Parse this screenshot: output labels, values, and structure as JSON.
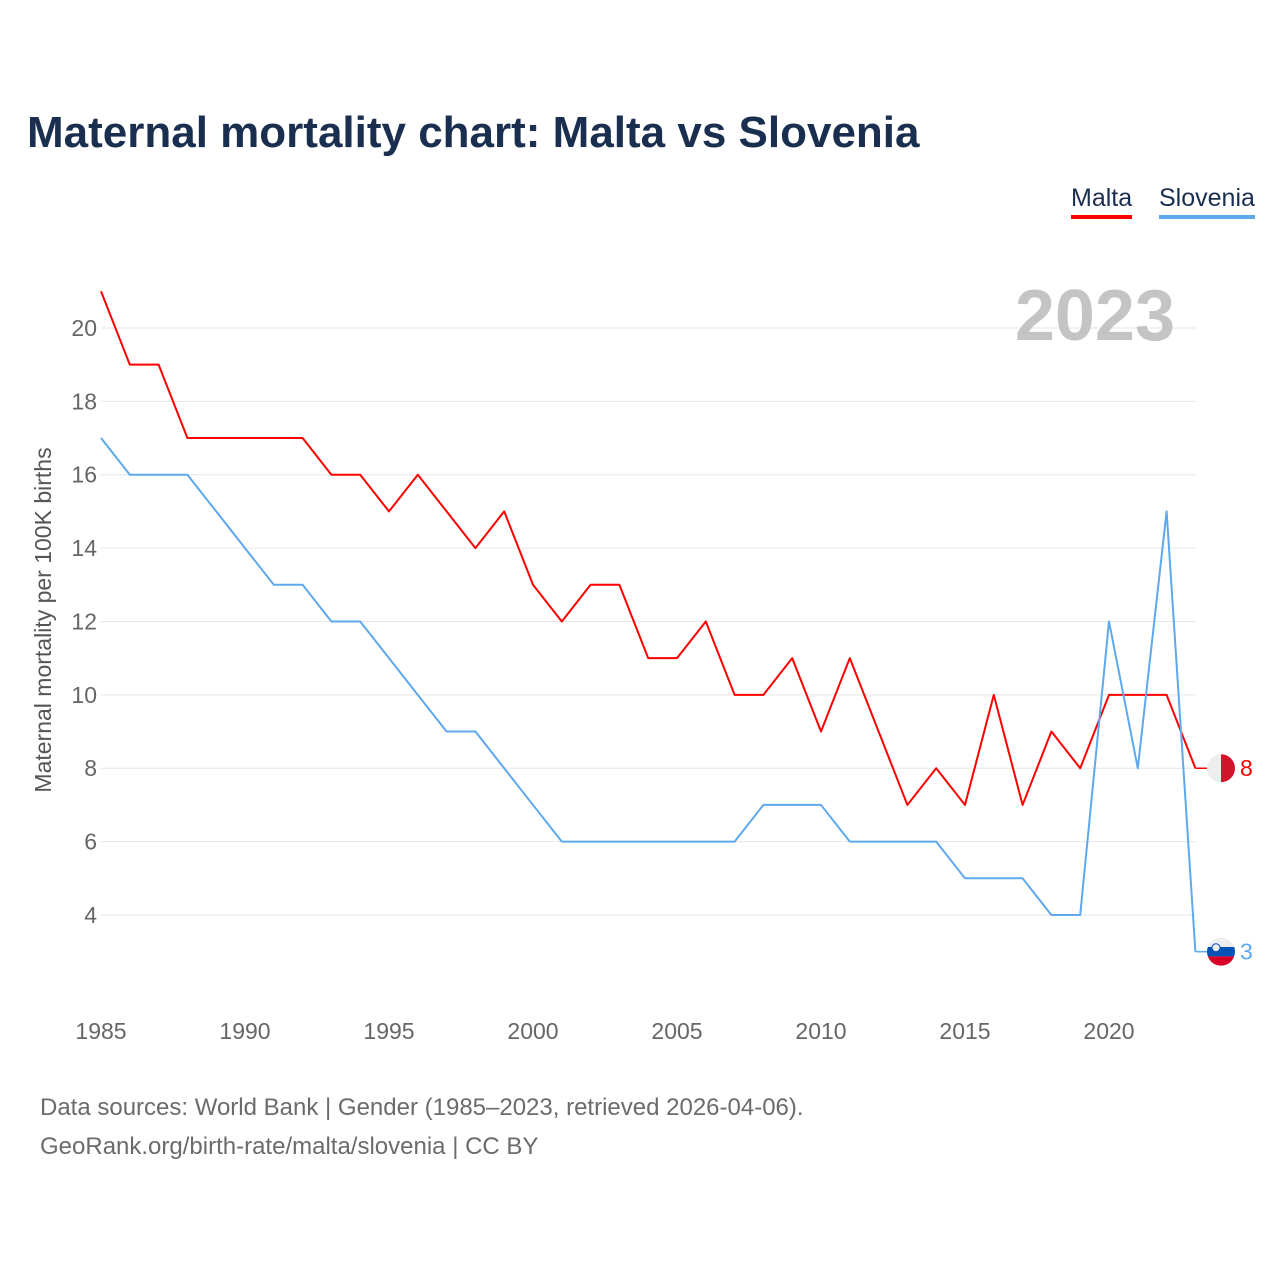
{
  "title": "Maternal mortality chart: Malta vs Slovenia",
  "legend": [
    "Malta",
    "Slovenia"
  ],
  "source_line1": "Data sources: World Bank | Gender (1985–2023, retrieved 2026-04-06).",
  "source_line2": "GeoRank.org/birth-rate/malta/slovenia | CC BY",
  "chart_data": {
    "type": "line",
    "title": "Maternal mortality chart: Malta vs Slovenia",
    "xlabel": "",
    "ylabel": "Maternal mortality per 100K births",
    "year_label": "2023",
    "x": [
      1985,
      1986,
      1987,
      1988,
      1989,
      1990,
      1991,
      1992,
      1993,
      1994,
      1995,
      1996,
      1997,
      1998,
      1999,
      2000,
      2001,
      2002,
      2003,
      2004,
      2005,
      2006,
      2007,
      2008,
      2009,
      2010,
      2011,
      2012,
      2013,
      2014,
      2015,
      2016,
      2017,
      2018,
      2019,
      2020,
      2021,
      2022,
      2023
    ],
    "xticks": [
      1985,
      1990,
      1995,
      2000,
      2005,
      2010,
      2015,
      2020
    ],
    "yticks": [
      4,
      6,
      8,
      10,
      12,
      14,
      16,
      18,
      20
    ],
    "xlim": [
      1985,
      2023
    ],
    "ylim": [
      2.7,
      21.2
    ],
    "grid": true,
    "legend_position": "top-right",
    "series": [
      {
        "name": "Malta",
        "color": "#ff0000",
        "end_label": "8",
        "values": [
          21,
          19,
          19,
          17,
          17,
          17,
          17,
          17,
          16,
          16,
          15,
          16,
          15,
          14,
          15,
          13,
          12,
          13,
          13,
          11,
          11,
          12,
          10,
          10,
          11,
          9,
          11,
          9,
          7,
          8,
          7,
          10,
          7,
          9,
          8,
          10,
          10,
          10,
          8
        ]
      },
      {
        "name": "Slovenia",
        "color": "#5ea8ee",
        "end_label": "3",
        "values": [
          17,
          16,
          16,
          16,
          15,
          14,
          13,
          13,
          12,
          12,
          11,
          10,
          9,
          9,
          8,
          7,
          6,
          6,
          6,
          6,
          6,
          6,
          6,
          7,
          7,
          7,
          6,
          6,
          6,
          6,
          5,
          5,
          5,
          4,
          4,
          12,
          8,
          15,
          3
        ]
      }
    ]
  }
}
